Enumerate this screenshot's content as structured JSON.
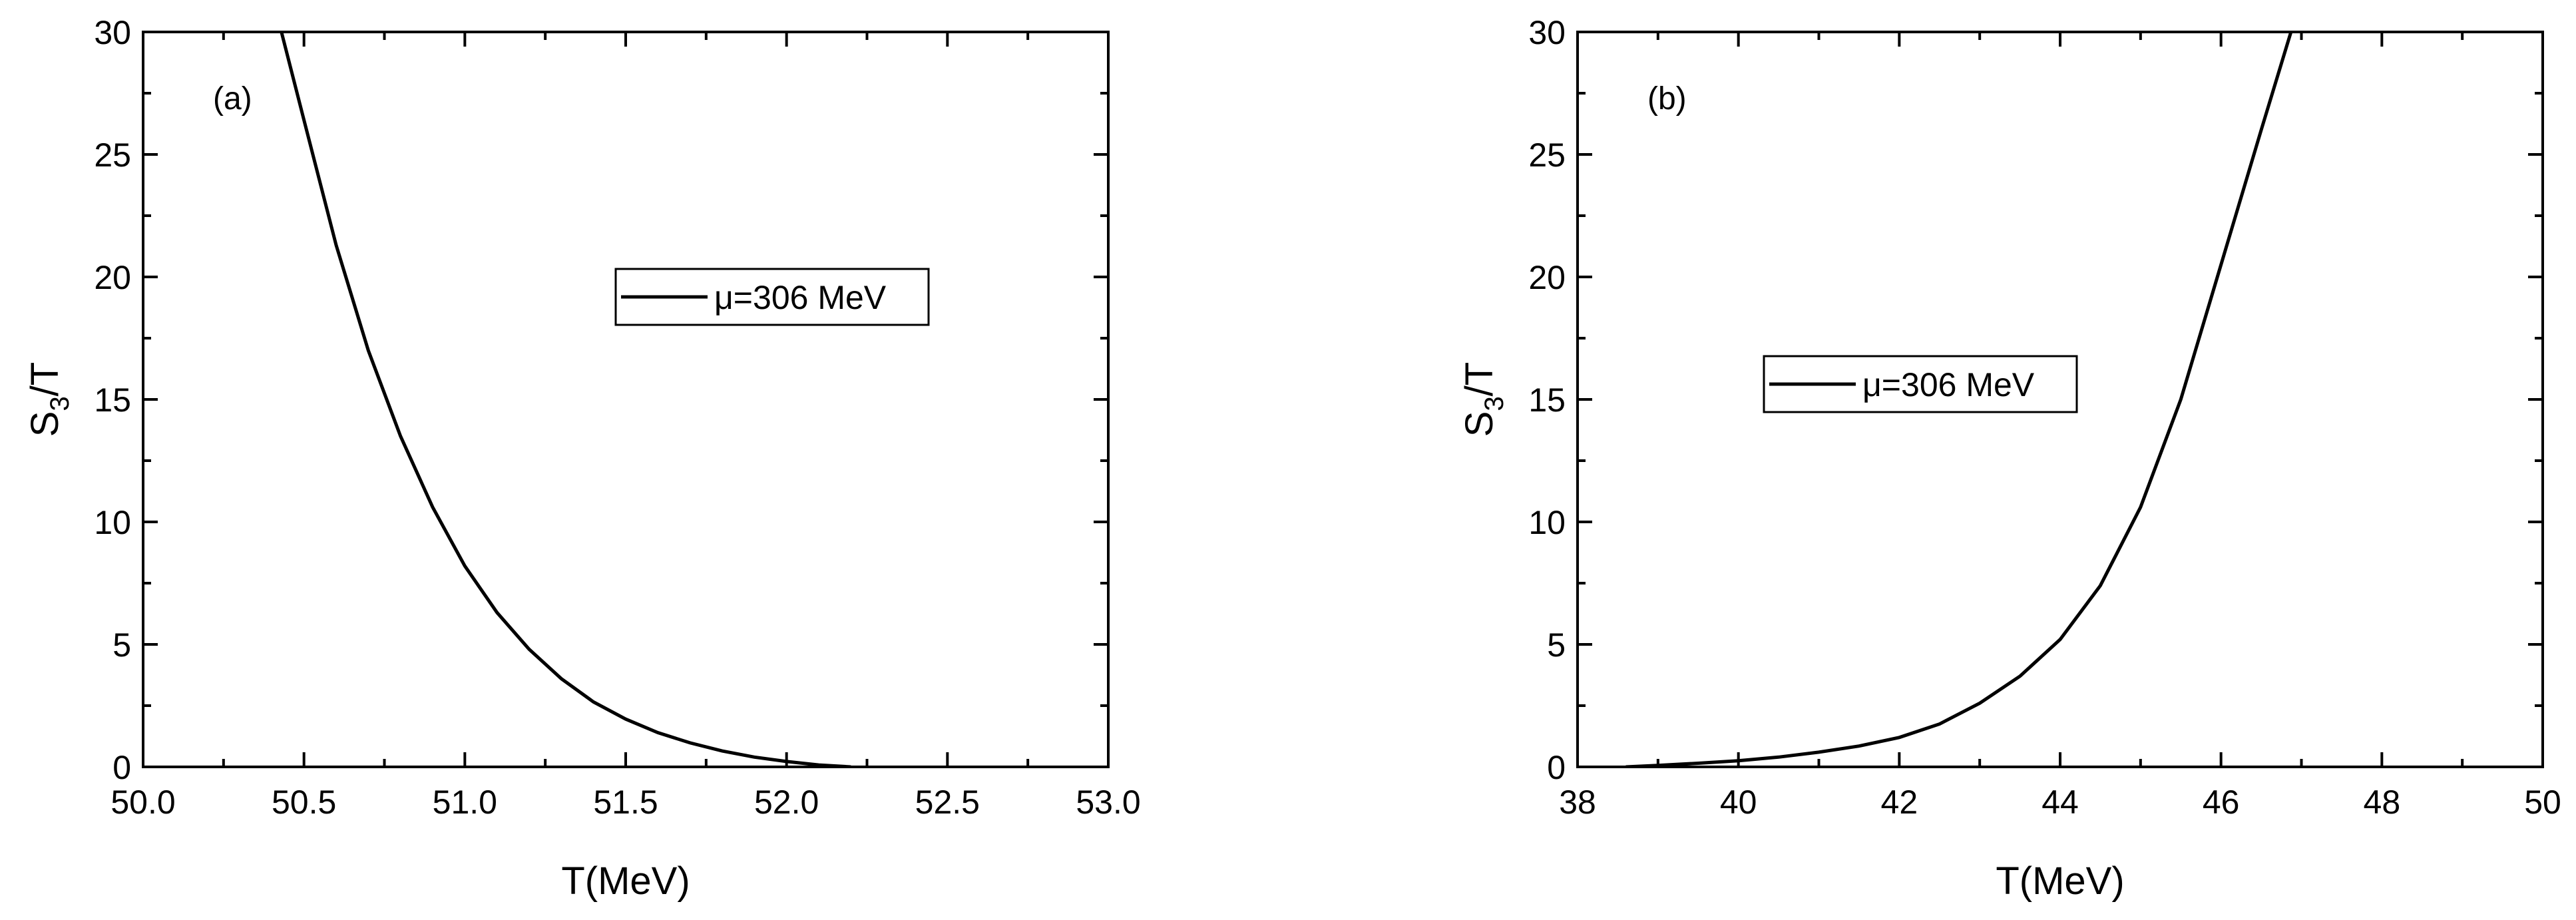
{
  "chart_data": [
    {
      "type": "line",
      "panel_label": "(a)",
      "xlabel": "T(MeV)",
      "ylabel": "S",
      "ylabel_sub": "3",
      "ylabel_rest": "/T",
      "xlim": [
        50.0,
        53.0
      ],
      "ylim": [
        0,
        30
      ],
      "xticks": [
        "50.0",
        "50.5",
        "51.0",
        "51.5",
        "52.0",
        "52.5",
        "53.0"
      ],
      "yticks": [
        "0",
        "5",
        "10",
        "15",
        "20",
        "25",
        "30"
      ],
      "grid": false,
      "legend": "center-right",
      "series": [
        {
          "name": "μ=306 MeV",
          "color": "#000000",
          "x": [
            50.43,
            50.5,
            50.6,
            50.7,
            50.8,
            50.9,
            51.0,
            51.1,
            51.2,
            51.3,
            51.4,
            51.5,
            51.6,
            51.7,
            51.8,
            51.9,
            52.0,
            52.1,
            52.2
          ],
          "y": [
            30.0,
            26.4,
            21.3,
            17.0,
            13.5,
            10.6,
            8.2,
            6.3,
            4.8,
            3.6,
            2.65,
            1.95,
            1.4,
            0.98,
            0.65,
            0.4,
            0.22,
            0.08,
            0.0
          ]
        }
      ]
    },
    {
      "type": "line",
      "panel_label": "(b)",
      "xlabel": "T(MeV)",
      "ylabel": "S",
      "ylabel_sub": "3",
      "ylabel_rest": "/T",
      "xlim": [
        38,
        50
      ],
      "ylim": [
        0,
        30
      ],
      "xticks": [
        "38",
        "40",
        "42",
        "44",
        "46",
        "48",
        "50"
      ],
      "yticks": [
        "0",
        "5",
        "10",
        "15",
        "20",
        "25",
        "30"
      ],
      "grid": false,
      "legend": "center-left",
      "series": [
        {
          "name": "μ=306 MeV",
          "color": "#000000",
          "x": [
            38.6,
            39.0,
            39.5,
            40.0,
            40.5,
            41.0,
            41.5,
            42.0,
            42.5,
            43.0,
            43.5,
            44.0,
            44.5,
            45.0,
            45.5,
            46.0,
            46.5,
            46.87
          ],
          "y": [
            0.0,
            0.06,
            0.15,
            0.25,
            0.4,
            0.6,
            0.85,
            1.2,
            1.75,
            2.6,
            3.7,
            5.2,
            7.4,
            10.6,
            15.0,
            20.5,
            26.0,
            30.0
          ]
        }
      ]
    }
  ]
}
